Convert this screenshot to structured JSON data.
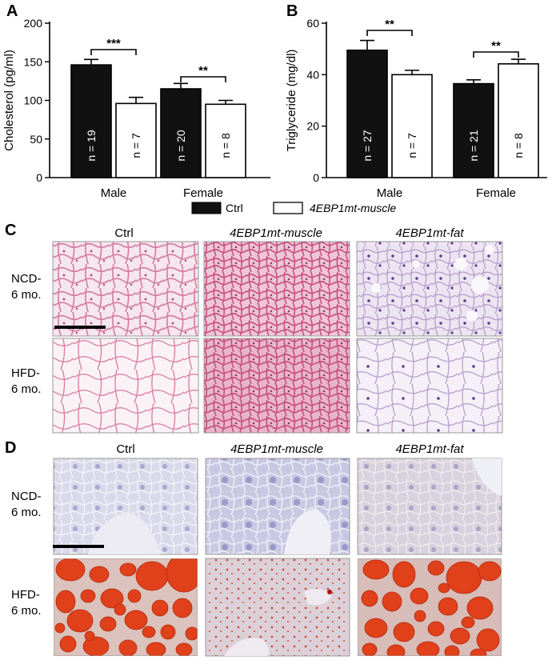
{
  "panels": {
    "A": "A",
    "B": "B",
    "C": "C",
    "D": "D"
  },
  "chart_data": [
    {
      "type": "bar",
      "panel": "A",
      "ylabel": "Cholesterol (pg/ml)",
      "ylim": [
        0,
        200
      ],
      "yticks": [
        "0",
        "50",
        "100",
        "150",
        "200"
      ],
      "categories": [
        "Male",
        "Female"
      ],
      "series": [
        {
          "name": "Ctrl",
          "values": [
            146,
            115
          ],
          "errors": [
            7,
            7
          ],
          "n": [
            "n = 19",
            "n = 20"
          ]
        },
        {
          "name": "4EBP1mt-muscle",
          "values": [
            96,
            95
          ],
          "errors": [
            8,
            5
          ],
          "n": [
            "n = 7",
            "n = 8"
          ]
        }
      ],
      "significance": [
        "***",
        "**"
      ]
    },
    {
      "type": "bar",
      "panel": "B",
      "ylabel": "Triglyceride (mg/dl)",
      "ylim": [
        0,
        60
      ],
      "yticks": [
        "0",
        "20",
        "40",
        "60"
      ],
      "categories": [
        "Male",
        "Female"
      ],
      "series": [
        {
          "name": "Ctrl",
          "values": [
            49.5,
            36.5
          ],
          "errors": [
            3.8,
            1.5
          ],
          "n": [
            "n = 27",
            "n = 21"
          ]
        },
        {
          "name": "4EBP1mt-muscle",
          "values": [
            40,
            44.2
          ],
          "errors": [
            1.7,
            1.8
          ],
          "n": [
            "n = 7",
            "n = 8"
          ]
        }
      ],
      "significance": [
        "**",
        "**"
      ]
    }
  ],
  "legend": [
    {
      "label": "Ctrl",
      "fill": "#111111"
    },
    {
      "label": "4EBP1mt-muscle",
      "fill": "#ffffff"
    }
  ],
  "micrographs": {
    "columns": [
      "Ctrl",
      "4EBP1mt-muscle",
      "4EBP1mt-fat"
    ],
    "rows": [
      {
        "line1": "NCD-",
        "line2": "6 mo."
      },
      {
        "line1": "HFD-",
        "line2": "6 mo."
      }
    ]
  },
  "colors": {
    "bar_dark": "#111111",
    "he_pink": "#d98aa8",
    "he_purple": "#8a6fb0",
    "oro_red": "#e0401a",
    "hema_blue": "#9c9ccc"
  }
}
